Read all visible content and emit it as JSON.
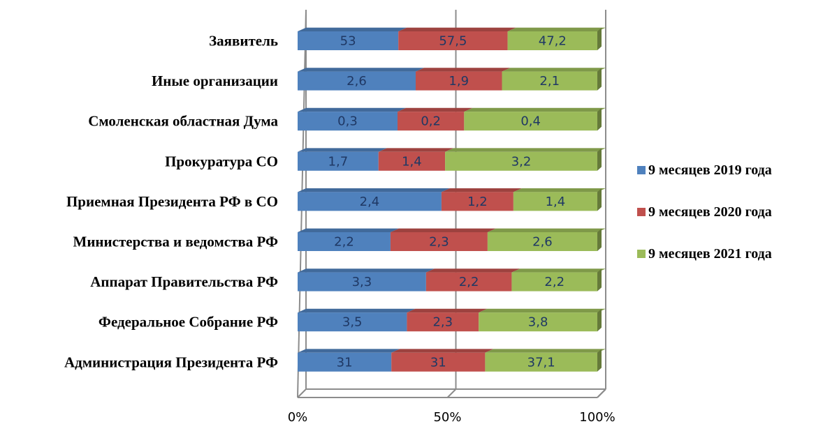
{
  "chart_data": {
    "type": "bar",
    "orientation": "horizontal",
    "stacked": "percent",
    "categories": [
      "Заявитель",
      "Иные организации",
      "Смоленская областная Дума",
      "Прокуратура СО",
      "Приемная Президента РФ в СО",
      "Министерства и ведомства РФ",
      "Аппарат Правительства РФ",
      "Федеральное Собрание РФ",
      "Администрация Президента РФ"
    ],
    "series": [
      {
        "name": "9 месяцев 2019 года",
        "color": "#4f81bd",
        "values": [
          53,
          2.6,
          0.3,
          1.7,
          2.4,
          2.2,
          3.3,
          3.5,
          31
        ],
        "labels": [
          "53",
          "2,6",
          "0,3",
          "1,7",
          "2,4",
          "2,2",
          "3,3",
          "3,5",
          "31"
        ]
      },
      {
        "name": "9 месяцев 2020 года",
        "color": "#c0504d",
        "values": [
          57.5,
          1.9,
          0.2,
          1.4,
          1.2,
          2.3,
          2.2,
          2.3,
          31
        ],
        "labels": [
          "57,5",
          "1,9",
          "0,2",
          "1,4",
          "1,2",
          "2,3",
          "2,2",
          "2,3",
          "31"
        ]
      },
      {
        "name": "9 месяцев 2021 года",
        "color": "#9bbb59",
        "values": [
          47.2,
          2.1,
          0.4,
          3.2,
          1.4,
          2.6,
          2.2,
          3.8,
          37.1
        ],
        "labels": [
          "47,2",
          "2,1",
          "0,4",
          "3,2",
          "1,4",
          "2,6",
          "2,2",
          "3,8",
          "37,1"
        ]
      }
    ],
    "xticks": [
      "0%",
      "50%",
      "100%"
    ],
    "xlim": [
      0,
      100
    ],
    "grid": true,
    "legend_position": "right"
  }
}
